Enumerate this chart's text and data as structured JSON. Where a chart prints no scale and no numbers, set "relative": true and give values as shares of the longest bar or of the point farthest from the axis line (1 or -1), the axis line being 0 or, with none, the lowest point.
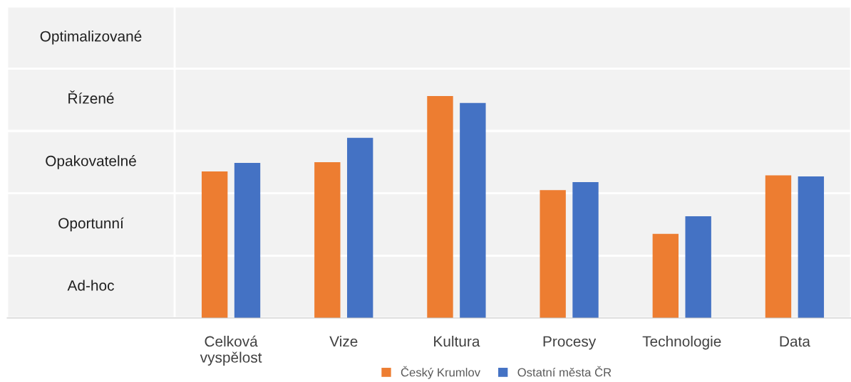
{
  "chart_data": {
    "type": "bar",
    "relative": true,
    "categories": [
      "Celková\nvyspělost",
      "Vize",
      "Kultura",
      "Procesy",
      "Technologie",
      "Data"
    ],
    "series": [
      {
        "name": "Český Krumlov",
        "color": "#ed7d31",
        "values": [
          0.66,
          0.702,
          1,
          0.576,
          0.379,
          0.643
        ]
      },
      {
        "name": "Ostatní města ČR",
        "color": "#4472c4",
        "values": [
          0.699,
          0.812,
          0.969,
          0.612,
          0.458,
          0.638
        ]
      }
    ],
    "bands": [
      {
        "axis": "y",
        "from": 0,
        "to": 0.281,
        "label": "Ad-hoc",
        "color": "#f2f2f2"
      },
      {
        "axis": "y",
        "from": 0.281,
        "to": 0.562,
        "label": "Oportunní",
        "color": "#f2f2f2"
      },
      {
        "axis": "y",
        "from": 0.562,
        "to": 0.843,
        "label": "Opakovatelné",
        "color": "#f2f2f2"
      },
      {
        "axis": "y",
        "from": 0.843,
        "to": 1.124,
        "label": "Řízené",
        "color": "#f2f2f2"
      },
      {
        "axis": "y",
        "from": 1.124,
        "to": 1.404,
        "label": "Optimalizované",
        "color": "#f2f2f2"
      }
    ],
    "legend": "bottom"
  }
}
